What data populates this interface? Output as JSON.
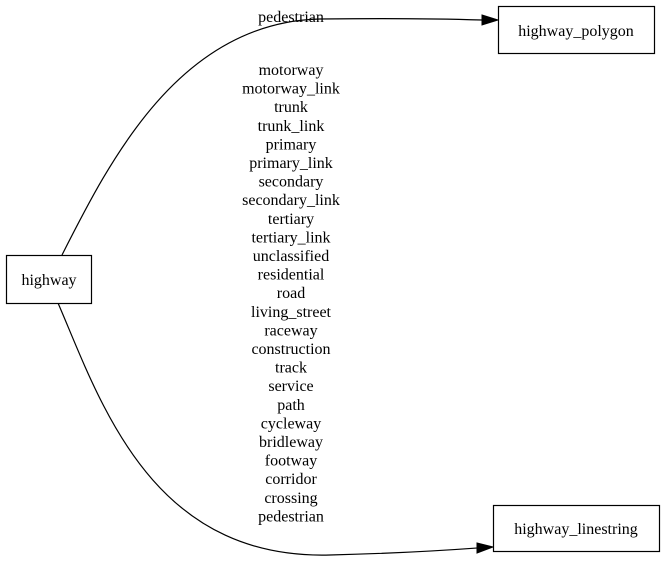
{
  "nodes": {
    "highway": "highway",
    "highway_polygon": "highway_polygon",
    "highway_linestring": "highway_linestring"
  },
  "edges": {
    "to_polygon": {
      "labels": [
        "pedestrian"
      ]
    },
    "to_linestring": {
      "labels": [
        "motorway",
        "motorway_link",
        "trunk",
        "trunk_link",
        "primary",
        "primary_link",
        "secondary",
        "secondary_link",
        "tertiary",
        "tertiary_link",
        "unclassified",
        "residential",
        "road",
        "living_street",
        "raceway",
        "construction",
        "track",
        "service",
        "path",
        "cycleway",
        "bridleway",
        "footway",
        "corridor",
        "crossing",
        "pedestrian"
      ]
    }
  }
}
